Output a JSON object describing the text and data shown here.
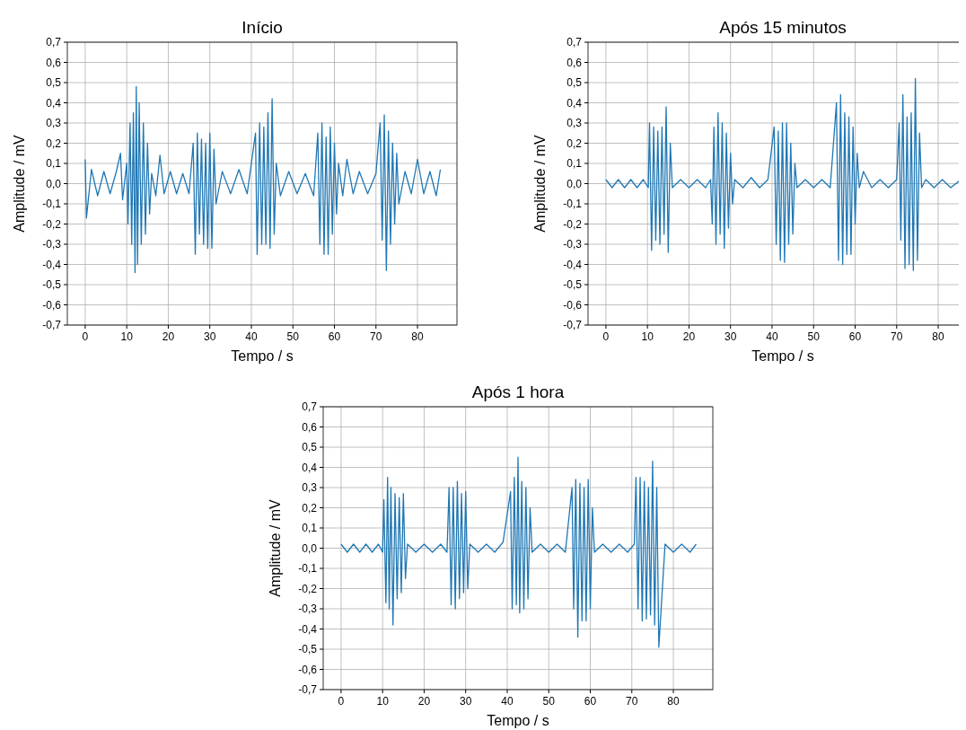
{
  "chart_data": [
    {
      "type": "line",
      "title": "Início",
      "xlabel": "Tempo / s",
      "ylabel": "Amplitude / mV",
      "xlim": [
        -4.3,
        89.5
      ],
      "ylim": [
        -0.7,
        0.7
      ],
      "xticks": [
        0,
        10,
        20,
        30,
        40,
        50,
        60,
        70,
        80
      ],
      "yticks": [
        {
          "value": -0.7,
          "label": "-0,7"
        },
        {
          "value": -0.6,
          "label": "-0,6"
        },
        {
          "value": -0.5,
          "label": "-0,5"
        },
        {
          "value": -0.4,
          "label": "-0,4"
        },
        {
          "value": -0.3,
          "label": "-0,3"
        },
        {
          "value": -0.2,
          "label": "-0,2"
        },
        {
          "value": -0.1,
          "label": "-0,1"
        },
        {
          "value": 0,
          "label": "0,0"
        },
        {
          "value": 0.1,
          "label": "0,1"
        },
        {
          "value": 0.2,
          "label": "0,2"
        },
        {
          "value": 0.3,
          "label": "0,3"
        },
        {
          "value": 0.4,
          "label": "0,4"
        },
        {
          "value": 0.5,
          "label": "0,5"
        },
        {
          "value": 0.6,
          "label": "0,6"
        },
        {
          "value": 0.7,
          "label": "0,7"
        }
      ],
      "grid": true,
      "series": [
        {
          "color": "#1f77b4",
          "x": [
            0,
            0.3,
            1.5,
            3,
            4.5,
            6,
            7.5,
            8.5,
            9,
            10,
            10.3,
            10.8,
            11.2,
            11.6,
            12,
            12.3,
            12.6,
            13,
            13.5,
            14,
            14.5,
            15,
            15.5,
            16,
            17,
            18,
            19,
            20.5,
            22,
            23.5,
            25,
            26,
            26.5,
            27,
            27.5,
            28,
            28.5,
            29,
            29.5,
            30,
            30.5,
            31,
            31.5,
            33,
            35,
            37,
            39,
            41,
            41.4,
            42,
            42.5,
            43,
            43.5,
            44,
            44.5,
            45,
            45.5,
            46,
            47,
            49,
            51,
            53,
            55,
            56,
            56.5,
            57,
            57.5,
            58,
            58.5,
            59,
            59.5,
            60,
            60.5,
            61,
            62,
            63,
            64.5,
            66,
            68,
            70,
            71,
            71.5,
            72,
            72.5,
            73,
            73.5,
            74,
            74.5,
            75,
            75.5,
            77,
            78.5,
            80,
            81.5,
            83,
            84.5,
            85.5
          ],
          "values": [
            0.12,
            -0.17,
            0.07,
            -0.06,
            0.06,
            -0.05,
            0.06,
            0.15,
            -0.08,
            0.1,
            -0.2,
            0.3,
            -0.3,
            0.35,
            -0.44,
            0.48,
            -0.4,
            0.4,
            -0.3,
            0.3,
            -0.25,
            0.2,
            -0.15,
            0.05,
            -0.06,
            0.14,
            -0.05,
            0.06,
            -0.05,
            0.05,
            -0.05,
            0.2,
            -0.35,
            0.25,
            -0.25,
            0.22,
            -0.3,
            0.2,
            -0.32,
            0.25,
            -0.32,
            0.17,
            -0.1,
            0.06,
            -0.05,
            0.07,
            -0.05,
            0.25,
            -0.35,
            0.3,
            -0.3,
            0.28,
            -0.3,
            0.35,
            -0.32,
            0.42,
            -0.25,
            0.1,
            -0.06,
            0.06,
            -0.05,
            0.05,
            -0.06,
            0.25,
            -0.3,
            0.3,
            -0.35,
            0.23,
            -0.35,
            0.28,
            -0.25,
            0.2,
            -0.15,
            0.1,
            -0.06,
            0.12,
            -0.05,
            0.06,
            -0.05,
            0.05,
            0.3,
            -0.28,
            0.34,
            -0.43,
            0.26,
            -0.3,
            0.2,
            -0.2,
            0.15,
            -0.1,
            0.06,
            -0.05,
            0.12,
            -0.05,
            0.06,
            -0.06,
            0.07
          ]
        }
      ]
    },
    {
      "type": "line",
      "title": "Após 15 minutos",
      "xlabel": "Tempo / s",
      "ylabel": "Amplitude / mV",
      "xlim": [
        -4.3,
        89.5
      ],
      "ylim": [
        -0.7,
        0.7
      ],
      "xticks": [
        0,
        10,
        20,
        30,
        40,
        50,
        60,
        70,
        80
      ],
      "yticks": [
        {
          "value": -0.7,
          "label": "-0,7"
        },
        {
          "value": -0.6,
          "label": "-0,6"
        },
        {
          "value": -0.5,
          "label": "-0,5"
        },
        {
          "value": -0.4,
          "label": "-0,4"
        },
        {
          "value": -0.3,
          "label": "-0,3"
        },
        {
          "value": -0.2,
          "label": "-0,2"
        },
        {
          "value": -0.1,
          "label": "-0,1"
        },
        {
          "value": 0,
          "label": "0,0"
        },
        {
          "value": 0.1,
          "label": "0,1"
        },
        {
          "value": 0.2,
          "label": "0,2"
        },
        {
          "value": 0.3,
          "label": "0,3"
        },
        {
          "value": 0.4,
          "label": "0,4"
        },
        {
          "value": 0.5,
          "label": "0,5"
        },
        {
          "value": 0.6,
          "label": "0,6"
        },
        {
          "value": 0.7,
          "label": "0,7"
        }
      ],
      "grid": true,
      "series": [
        {
          "color": "#1f77b4",
          "x": [
            0,
            1.5,
            3,
            4.5,
            6,
            7.5,
            9,
            10.2,
            10.5,
            11,
            11.5,
            12,
            12.5,
            13,
            13.5,
            14,
            14.5,
            15,
            15.5,
            16,
            18,
            20,
            22,
            24,
            25.2,
            25.6,
            26,
            26.5,
            27,
            27.5,
            28,
            28.5,
            29,
            29.5,
            30,
            30.5,
            31,
            33,
            35,
            37,
            39,
            40.5,
            41,
            41.5,
            42,
            42.5,
            43,
            43.5,
            44,
            44.5,
            45,
            45.5,
            46,
            48,
            50,
            52,
            54,
            55.5,
            56,
            56.5,
            57,
            57.5,
            58,
            58.5,
            59,
            59.5,
            60,
            60.5,
            61,
            62,
            64,
            66,
            68,
            70,
            70.6,
            71,
            71.5,
            72,
            72.5,
            73,
            73.5,
            74,
            74.5,
            75,
            75.5,
            76,
            77,
            79,
            81,
            83,
            85.5
          ],
          "values": [
            0.02,
            -0.02,
            0.02,
            -0.02,
            0.02,
            -0.02,
            0.02,
            -0.02,
            0.3,
            -0.33,
            0.28,
            -0.28,
            0.26,
            -0.3,
            0.28,
            -0.25,
            0.38,
            -0.34,
            0.2,
            -0.02,
            0.02,
            -0.02,
            0.02,
            -0.02,
            0.02,
            -0.2,
            0.28,
            -0.3,
            0.35,
            -0.25,
            0.3,
            -0.32,
            0.25,
            -0.22,
            0.15,
            -0.1,
            0.02,
            -0.02,
            0.03,
            -0.02,
            0.02,
            0.28,
            -0.3,
            0.26,
            -0.38,
            0.3,
            -0.39,
            0.3,
            -0.3,
            0.2,
            -0.25,
            0.1,
            -0.02,
            0.02,
            -0.02,
            0.02,
            -0.02,
            0.4,
            -0.38,
            0.44,
            -0.4,
            0.35,
            -0.35,
            0.33,
            -0.35,
            0.28,
            -0.2,
            0.15,
            -0.02,
            0.06,
            -0.02,
            0.02,
            -0.02,
            0.02,
            0.3,
            -0.28,
            0.44,
            -0.42,
            0.33,
            -0.4,
            0.35,
            -0.43,
            0.52,
            -0.38,
            0.25,
            -0.02,
            0.02,
            -0.02,
            0.02,
            -0.02,
            0.02
          ]
        }
      ]
    },
    {
      "type": "line",
      "title": "Após 1 hora",
      "xlabel": "Tempo / s",
      "ylabel": "Amplitude / mV",
      "xlim": [
        -4.3,
        89.5
      ],
      "ylim": [
        -0.7,
        0.7
      ],
      "xticks": [
        0,
        10,
        20,
        30,
        40,
        50,
        60,
        70,
        80
      ],
      "yticks": [
        {
          "value": -0.7,
          "label": "-0,7"
        },
        {
          "value": -0.6,
          "label": "-0,6"
        },
        {
          "value": -0.5,
          "label": "-0,5"
        },
        {
          "value": -0.4,
          "label": "-0,4"
        },
        {
          "value": -0.3,
          "label": "-0,3"
        },
        {
          "value": -0.2,
          "label": "-0,2"
        },
        {
          "value": -0.1,
          "label": "-0,1"
        },
        {
          "value": 0,
          "label": "0,0"
        },
        {
          "value": 0.1,
          "label": "0,1"
        },
        {
          "value": 0.2,
          "label": "0,2"
        },
        {
          "value": 0.3,
          "label": "0,3"
        },
        {
          "value": 0.4,
          "label": "0,4"
        },
        {
          "value": 0.5,
          "label": "0,5"
        },
        {
          "value": 0.6,
          "label": "0,6"
        },
        {
          "value": 0.7,
          "label": "0,7"
        }
      ],
      "grid": true,
      "series": [
        {
          "color": "#1f77b4",
          "x": [
            0,
            1.5,
            3,
            4.5,
            6,
            7.5,
            9,
            10,
            10.3,
            10.8,
            11.2,
            11.6,
            12,
            12.5,
            13,
            13.5,
            14,
            14.5,
            15,
            15.5,
            16,
            18,
            20,
            22,
            24,
            25.5,
            26,
            26.5,
            27,
            27.5,
            28,
            28.5,
            29,
            29.5,
            30,
            30.5,
            31,
            33,
            35,
            37,
            39,
            40.8,
            41.2,
            41.7,
            42.2,
            42.6,
            43,
            43.5,
            44,
            44.5,
            45,
            45.5,
            46,
            48,
            50,
            52,
            54,
            55.6,
            56,
            56.5,
            57,
            57.5,
            58,
            58.5,
            59,
            59.5,
            60,
            60.5,
            61,
            63,
            65,
            67,
            69,
            70.6,
            71,
            71.5,
            72,
            72.5,
            73,
            73.5,
            74,
            74.5,
            75,
            75.5,
            76,
            76.5,
            78,
            80,
            82,
            84,
            85.5
          ],
          "values": [
            0.02,
            -0.02,
            0.02,
            -0.02,
            0.02,
            -0.02,
            0.02,
            -0.02,
            0.24,
            -0.27,
            0.35,
            -0.3,
            0.3,
            -0.38,
            0.27,
            -0.25,
            0.25,
            -0.22,
            0.27,
            -0.15,
            0.02,
            -0.02,
            0.02,
            -0.02,
            0.02,
            -0.02,
            0.3,
            -0.28,
            0.3,
            -0.3,
            0.33,
            -0.25,
            0.27,
            -0.22,
            0.28,
            -0.2,
            0.02,
            -0.02,
            0.02,
            -0.02,
            0.03,
            0.28,
            -0.3,
            0.35,
            -0.28,
            0.45,
            -0.32,
            0.33,
            -0.3,
            0.3,
            -0.25,
            0.2,
            -0.02,
            0.02,
            -0.02,
            0.02,
            -0.02,
            0.3,
            -0.3,
            0.34,
            -0.44,
            0.32,
            -0.36,
            0.3,
            -0.36,
            0.34,
            -0.3,
            0.2,
            -0.02,
            0.02,
            -0.02,
            0.02,
            -0.02,
            0.02,
            0.35,
            -0.3,
            0.35,
            -0.36,
            0.33,
            -0.35,
            0.3,
            -0.33,
            0.43,
            -0.38,
            0.3,
            -0.49,
            0.02,
            -0.02,
            0.02,
            -0.02,
            0.02
          ]
        }
      ]
    }
  ]
}
